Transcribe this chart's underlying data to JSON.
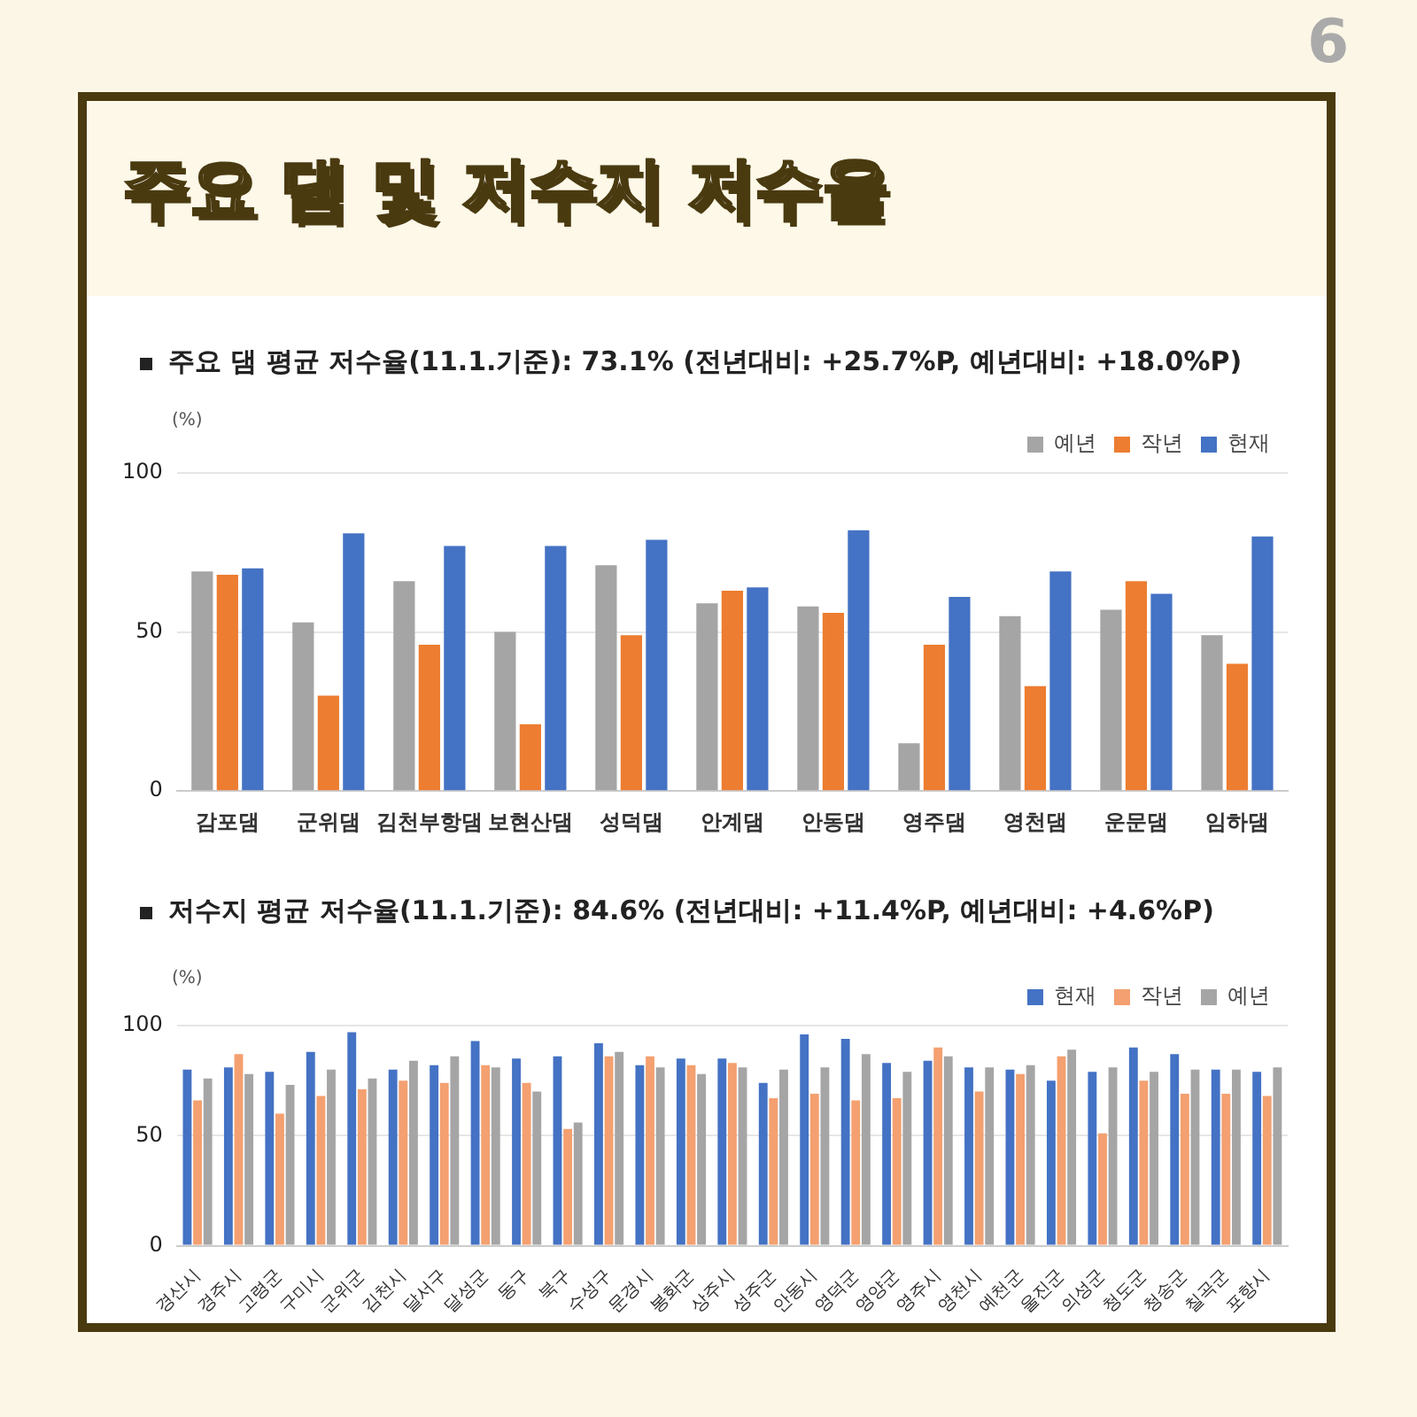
{
  "chart_data": [
    {
      "type": "bar",
      "title": "주요 댐 및 저수지 저수율",
      "subtitle": "주요 댐 평균 저수율(11.1.기준): 73.1% (전년대비: +25.7%P, 예년대비: +18.0%P)",
      "ylabel": "(%)",
      "annotations": [
        "6"
      ],
      "categories": [
        "감포댐",
        "군위댐",
        "김천부항댐",
        "보현산댐",
        "성덕댐",
        "안계댐",
        "안동댐",
        "영주댐",
        "영천댐",
        "운문댐",
        "임하댐"
      ],
      "series": [
        {
          "name": "예년",
          "color": "#a5a5a5",
          "values": [
            69,
            53,
            66,
            50,
            71,
            59,
            58,
            15,
            55,
            57,
            49
          ]
        },
        {
          "name": "작년",
          "color": "#ed7d31",
          "values": [
            68,
            30,
            46,
            21,
            49,
            63,
            56,
            46,
            33,
            66,
            40
          ]
        },
        {
          "name": "현재",
          "color": "#4472c4",
          "values": [
            70,
            81,
            77,
            77,
            79,
            64,
            82,
            61,
            69,
            62,
            80
          ]
        }
      ],
      "ylim": [
        0,
        100
      ],
      "yticks": [
        0,
        50,
        100
      ],
      "grid": "y",
      "legend": "top right"
    },
    {
      "type": "bar",
      "title": "저수지 평균 저수율(11.1.기준): 84.6% (전년대비: +11.4%P, 예년대비: +4.6%P)",
      "ylabel": "(%)",
      "categories": [
        "경산시",
        "경주시",
        "고령군",
        "구미시",
        "군위군",
        "김천시",
        "달서구",
        "달성군",
        "동구",
        "북구",
        "수성구",
        "문경시",
        "봉화군",
        "상주시",
        "성주군",
        "안동시",
        "영덕군",
        "영양군",
        "영주시",
        "영천시",
        "예천군",
        "울진군",
        "의성군",
        "청도군",
        "청송군",
        "칠곡군",
        "포항시"
      ],
      "series": [
        {
          "name": "현재",
          "color": "#4472c4",
          "values": [
            80,
            81,
            79,
            88,
            97,
            80,
            82,
            93,
            85,
            86,
            92,
            82,
            85,
            85,
            74,
            96,
            94,
            83,
            84,
            81,
            80,
            75,
            79,
            90,
            87,
            80,
            79
          ]
        },
        {
          "name": "작년",
          "color": "#f4a070",
          "values": [
            66,
            87,
            60,
            68,
            71,
            75,
            74,
            82,
            74,
            53,
            86,
            86,
            82,
            83,
            67,
            69,
            66,
            67,
            90,
            70,
            78,
            86,
            51,
            75,
            69,
            69,
            68
          ]
        },
        {
          "name": "예년",
          "color": "#a5a5a5",
          "values": [
            76,
            78,
            73,
            80,
            76,
            84,
            86,
            81,
            70,
            56,
            88,
            81,
            78,
            81,
            80,
            81,
            87,
            79,
            86,
            81,
            82,
            89,
            81,
            79,
            80,
            80,
            81
          ]
        }
      ],
      "ylim": [
        0,
        100
      ],
      "yticks": [
        0,
        50,
        100
      ],
      "grid": "y",
      "legend": "top right"
    }
  ]
}
